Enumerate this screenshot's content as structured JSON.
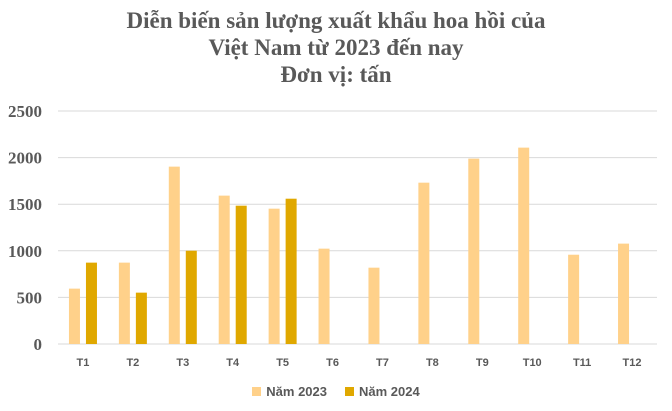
{
  "chart_data": {
    "type": "bar",
    "title": [
      "Diễn biến sản lượng xuất khẩu hoa hồi của",
      "Việt Nam từ 2023 đến nay",
      "Đơn vị: tấn"
    ],
    "categories": [
      "T1",
      "T2",
      "T3",
      "T4",
      "T5",
      "T6",
      "T7",
      "T8",
      "T9",
      "T10",
      "T11",
      "T12"
    ],
    "series": [
      {
        "name": "Năm 2023",
        "color": "#FFD18A",
        "values": [
          594,
          873,
          1903,
          1592,
          1452,
          1023,
          819,
          1731,
          1989,
          2107,
          958,
          1077
        ]
      },
      {
        "name": "Năm 2024",
        "color": "#E0A800",
        "values": [
          873,
          551,
          1001,
          1484,
          1559,
          null,
          null,
          null,
          null,
          null,
          null,
          null
        ]
      }
    ],
    "ylim": [
      0,
      2500
    ],
    "yticks": [
      0,
      500,
      1000,
      1500,
      2000,
      2500
    ],
    "grid": true,
    "legend": "bottom"
  }
}
